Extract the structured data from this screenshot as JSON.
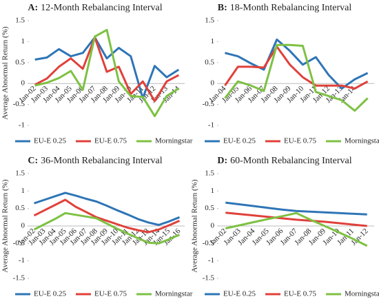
{
  "chart_data": [
    {
      "type": "line",
      "panel": "A:",
      "title": "12-Month Rebalancing Interval",
      "ylabel": "Average Abnormal Return (%)",
      "categories": [
        "Jan-02",
        "Jan-03",
        "Jan-04",
        "Jan-05",
        "Jan-06",
        "Jan-07",
        "Jan-08",
        "Jan-09",
        "Jan-10",
        "Jan-11",
        "Jan-12",
        "Jan-13",
        "Jan-14"
      ],
      "series": [
        {
          "name": "EU-E 0.25",
          "color": "#2e75b6",
          "values": [
            0.57,
            0.62,
            0.82,
            0.65,
            0.73,
            1.1,
            0.6,
            0.85,
            0.65,
            -0.35,
            0.42,
            0.15,
            0.33
          ]
        },
        {
          "name": "EU-E 0.75",
          "color": "#e0403a",
          "values": [
            -0.03,
            0.12,
            0.4,
            0.6,
            0.35,
            1.1,
            0.28,
            0.4,
            -0.25,
            0.05,
            -0.42,
            0.05,
            0.2
          ]
        },
        {
          "name": "Morningstar",
          "color": "#7dc142",
          "values": [
            -0.05,
            0.02,
            0.13,
            0.3,
            -0.15,
            1.12,
            1.28,
            0.05,
            -0.3,
            -0.32,
            -0.78,
            -0.3,
            -0.12
          ]
        }
      ],
      "ylim": [
        -1,
        1.5
      ],
      "yticks": [
        -1,
        -0.5,
        0,
        0.5,
        1,
        1.5
      ]
    },
    {
      "type": "line",
      "panel": "B:",
      "title": "18-Month Rebalancing Interval",
      "categories": [
        "Jan-04",
        "Jan-05",
        "Jan-06",
        "Jan-07",
        "Jan-08",
        "Jan-09",
        "Jan-10",
        "Jan-11",
        "Jan-12",
        "Jan-13",
        "Jan-14",
        null
      ],
      "series": [
        {
          "name": "EU-E 0.25",
          "color": "#2e75b6",
          "values": [
            0.73,
            0.65,
            0.48,
            0.33,
            1.05,
            0.78,
            0.45,
            0.63,
            0.2,
            -0.12,
            0.1,
            0.25
          ]
        },
        {
          "name": "EU-E 0.75",
          "color": "#e0403a",
          "values": [
            -0.05,
            0.4,
            0.4,
            0.38,
            0.88,
            0.45,
            0.15,
            -0.05,
            -0.05,
            -0.05,
            -0.12,
            0.05
          ]
        },
        {
          "name": "Morningstar",
          "color": "#7dc142",
          "values": [
            -0.35,
            0.05,
            -0.05,
            -0.18,
            0.92,
            0.92,
            0.9,
            -0.2,
            -0.3,
            -0.4,
            -0.65,
            -0.35
          ]
        }
      ],
      "ylim": [
        -1,
        1.5
      ],
      "yticks": [
        -1,
        -0.5,
        0,
        0.5,
        1,
        1.5
      ]
    },
    {
      "type": "line",
      "panel": "C:",
      "title": "36-Month Rebalancing Interval",
      "ylabel": "Average Abnormal Return (%)",
      "categories": [
        "Jan-02",
        "Jan-03",
        "Jan-04",
        "Jan-05",
        "Jan-06",
        "Jan-07",
        "Jan-08",
        "Jan-09",
        "Jan-10",
        "Jan-11",
        "Jan-12",
        "Jan-13",
        "Jan-14",
        "Jan-15",
        "Jan-16"
      ],
      "series": [
        {
          "name": "EU-E 0.25",
          "color": "#2e75b6",
          "values": [
            0.65,
            0.75,
            0.85,
            0.95,
            0.87,
            0.78,
            0.7,
            0.58,
            0.45,
            0.33,
            0.2,
            0.1,
            0.03,
            0.13,
            0.25
          ]
        },
        {
          "name": "EU-E 0.75",
          "color": "#e0403a",
          "values": [
            0.3,
            0.45,
            0.6,
            0.75,
            0.55,
            0.4,
            0.25,
            0.15,
            0.05,
            -0.05,
            -0.12,
            -0.18,
            -0.1,
            0.02,
            0.15
          ]
        },
        {
          "name": "Morningstar",
          "color": "#7dc142",
          "values": [
            -0.1,
            0.05,
            0.2,
            0.37,
            0.32,
            0.27,
            0.22,
            0.07,
            -0.08,
            -0.22,
            -0.35,
            -0.48,
            -0.5,
            -0.38,
            -0.25
          ]
        }
      ],
      "ylim": [
        -1.5,
        1.5
      ],
      "yticks": [
        -1.5,
        -1,
        -0.5,
        0,
        0.5,
        1,
        1.5
      ]
    },
    {
      "type": "line",
      "panel": "D:",
      "title": "60-Month Rebalancing Interval",
      "ylabel": "Average Abnormal Return (%)",
      "categories": [
        "Jan-02",
        "Jan-03",
        "Jan-04",
        "Jan-05",
        "Jan-06",
        "Jan-07",
        "Jan-08",
        "Jan-09",
        "Jan-10",
        "Jan-11",
        "Jan-12"
      ],
      "series": [
        {
          "name": "EU-E 0.25",
          "color": "#2e75b6",
          "values": [
            0.67,
            0.62,
            0.57,
            0.52,
            0.47,
            0.43,
            0.41,
            0.39,
            0.37,
            0.35,
            0.33
          ]
        },
        {
          "name": "EU-E 0.75",
          "color": "#e0403a",
          "values": [
            0.38,
            0.34,
            0.3,
            0.26,
            0.22,
            0.18,
            0.15,
            0.12,
            0.08,
            0.04,
            0.0
          ]
        },
        {
          "name": "Morningstar",
          "color": "#7dc142",
          "values": [
            -0.07,
            0.02,
            0.11,
            0.2,
            0.28,
            0.37,
            0.18,
            0.0,
            -0.18,
            -0.37,
            -0.57
          ]
        }
      ],
      "ylim": [
        -1.5,
        1.5
      ],
      "yticks": [
        -1.5,
        -1,
        -0.5,
        0,
        0.5,
        1,
        1.5
      ]
    }
  ]
}
